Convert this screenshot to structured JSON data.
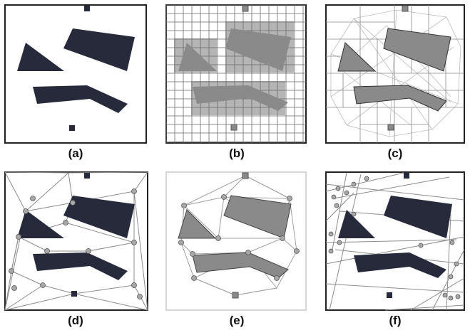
{
  "panels": [
    {
      "caption": "(a)"
    },
    {
      "caption": "(b)"
    },
    {
      "caption": "(c)"
    },
    {
      "caption": "(d)"
    },
    {
      "caption": "(e)"
    },
    {
      "caption": "(f)"
    }
  ],
  "colors": {
    "obstacle_dark": "#262a3b",
    "obstacle_gray": "#8a8a8a",
    "grid_line": "#6a6a6a",
    "edge_line": "#8c8c8c",
    "node_fill": "#a8a8a8",
    "border": "#222222"
  }
}
